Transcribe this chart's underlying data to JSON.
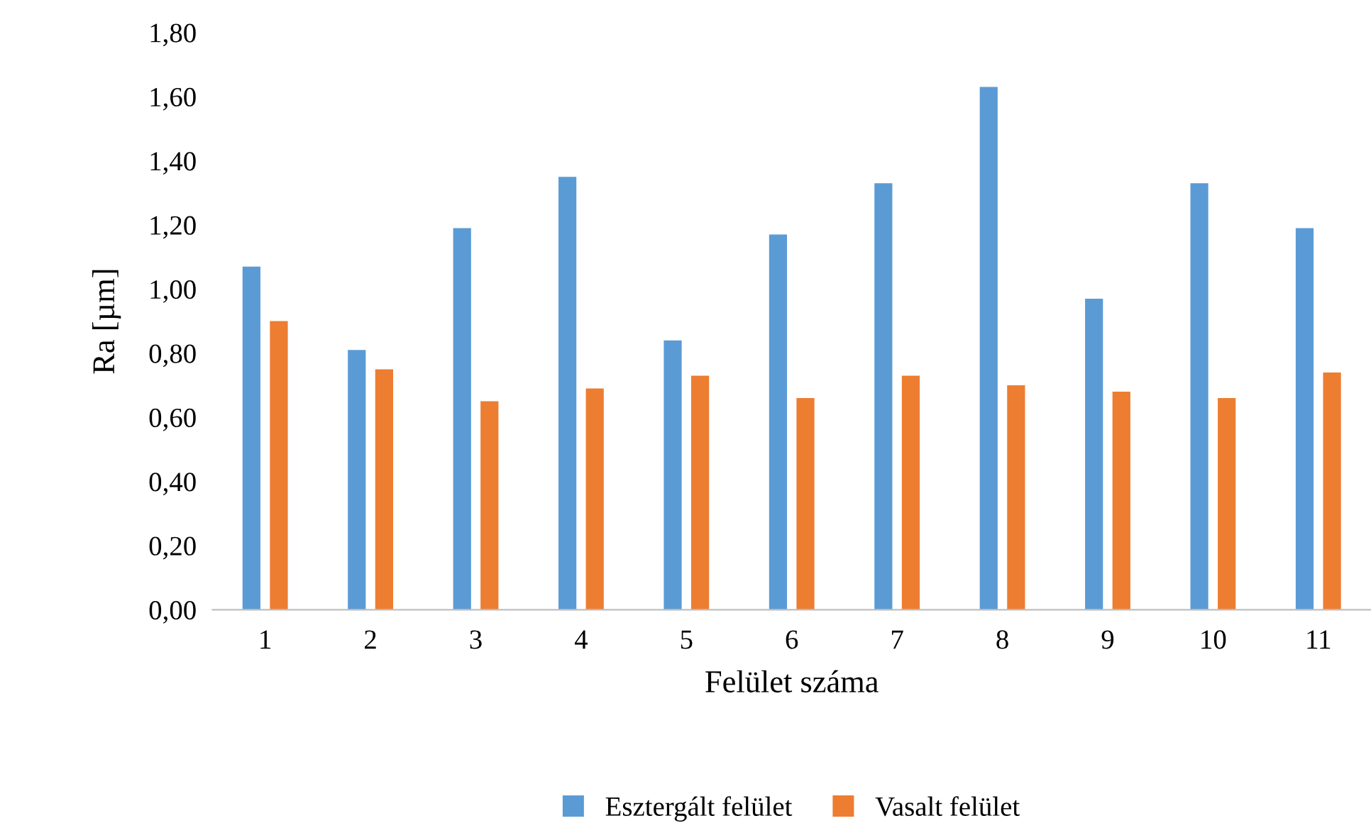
{
  "chart_data": {
    "type": "bar",
    "xlabel": "Felület száma",
    "ylabel": "Ra [µm]",
    "categories": [
      "1",
      "2",
      "3",
      "4",
      "5",
      "6",
      "7",
      "8",
      "9",
      "10",
      "11"
    ],
    "series": [
      {
        "name": "Esztergált felület",
        "color": "#5b9bd5",
        "values": [
          1.07,
          0.81,
          1.19,
          1.35,
          0.84,
          1.17,
          1.33,
          1.63,
          0.97,
          1.33,
          1.19
        ]
      },
      {
        "name": "Vasalt felület",
        "color": "#ed7d31",
        "values": [
          0.9,
          0.75,
          0.65,
          0.69,
          0.73,
          0.66,
          0.73,
          0.7,
          0.68,
          0.66,
          0.74
        ]
      }
    ],
    "ylim": [
      0,
      1.8
    ],
    "yticks": [
      {
        "value": 0,
        "label": "0,00"
      },
      {
        "value": 0.2,
        "label": "0,20"
      },
      {
        "value": 0.4,
        "label": "0,40"
      },
      {
        "value": 0.6,
        "label": "0,60"
      },
      {
        "value": 0.8,
        "label": "0,80"
      },
      {
        "value": 1.0,
        "label": "1,00"
      },
      {
        "value": 1.2,
        "label": "1,20"
      },
      {
        "value": 1.4,
        "label": "1,40"
      },
      {
        "value": 1.6,
        "label": "1,60"
      },
      {
        "value": 1.8,
        "label": "1,80"
      }
    ],
    "grid": false,
    "legend": "bottom"
  }
}
